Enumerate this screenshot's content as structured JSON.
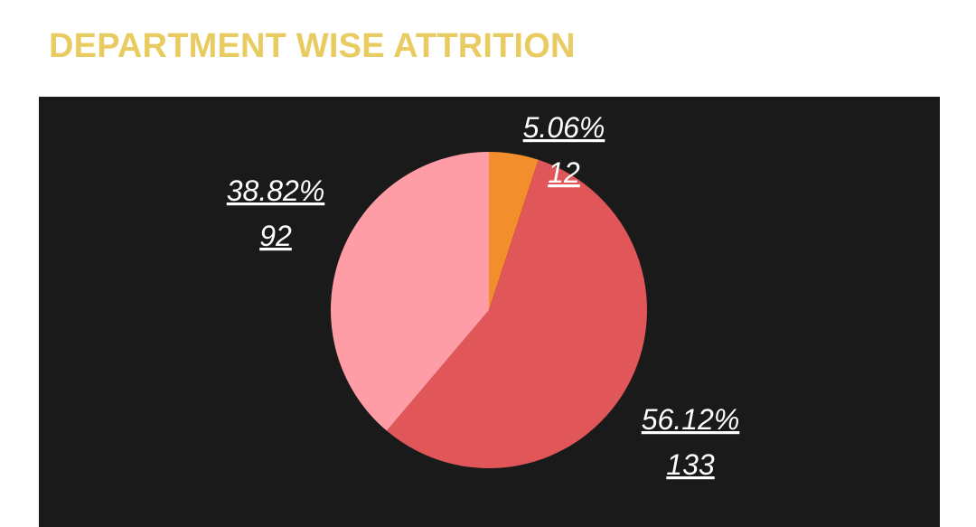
{
  "title": "DEPARTMENT WISE ATTRITION",
  "colors": {
    "title": "#E9CC61",
    "background": "#1A1A1A",
    "label": "#FFFFFF"
  },
  "chart_data": {
    "type": "pie",
    "title": "DEPARTMENT WISE ATTRITION",
    "start_angle_deg": 0,
    "direction": "clockwise",
    "slices": [
      {
        "value": 12,
        "percent_label": "5.06%",
        "count_label": "12",
        "color": "#F28E2B"
      },
      {
        "value": 133,
        "percent_label": "56.12%",
        "count_label": "133",
        "color": "#E15759"
      },
      {
        "value": 92,
        "percent_label": "38.82%",
        "count_label": "92",
        "color": "#FF9DA7"
      }
    ]
  }
}
